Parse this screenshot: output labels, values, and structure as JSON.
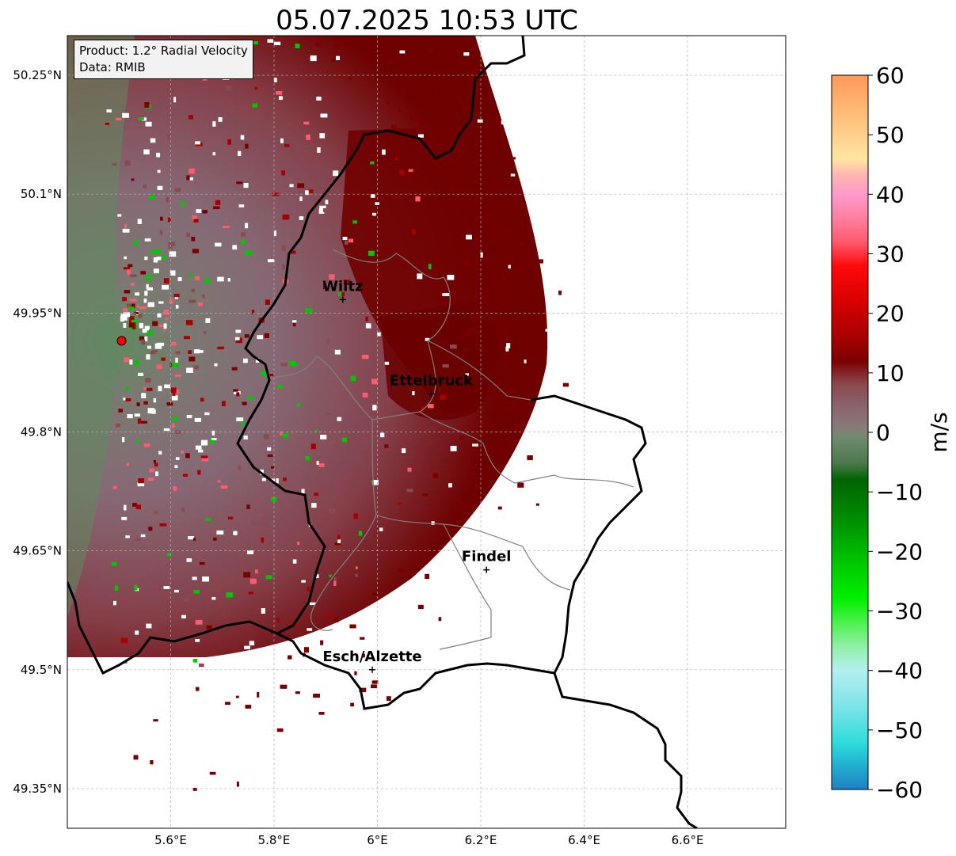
{
  "title": "05.07.2025 10:53 UTC",
  "info": {
    "product": "Product: 1.2° Radial Velocity",
    "data": "Data: RMIB"
  },
  "x_ticks": [
    {
      "value": 5.6,
      "label": "5.6°E"
    },
    {
      "value": 5.8,
      "label": "5.8°E"
    },
    {
      "value": 6.0,
      "label": "6°E"
    },
    {
      "value": 6.2,
      "label": "6.2°E"
    },
    {
      "value": 6.4,
      "label": "6.4°E"
    },
    {
      "value": 6.6,
      "label": "6.6°E"
    }
  ],
  "y_ticks": [
    {
      "value": 50.25,
      "label": "50.25°N"
    },
    {
      "value": 50.1,
      "label": "50.1°N"
    },
    {
      "value": 49.95,
      "label": "49.95°N"
    },
    {
      "value": 49.8,
      "label": "49.8°N"
    },
    {
      "value": 49.65,
      "label": "49.65°N"
    },
    {
      "value": 49.5,
      "label": "49.5°N"
    },
    {
      "value": 49.35,
      "label": "49.35°N"
    }
  ],
  "extent": {
    "lon": [
      5.4,
      6.79
    ],
    "lat": [
      49.3,
      50.3
    ]
  },
  "radar_site": {
    "lon": 5.505,
    "lat": 49.915
  },
  "cities": [
    {
      "name": "Wiltz",
      "lon": 5.933,
      "lat": 49.967
    },
    {
      "name": "Ettelbruck",
      "lon": 6.104,
      "lat": 49.848
    },
    {
      "name": "Findel",
      "lon": 6.211,
      "lat": 49.626
    },
    {
      "name": "Esch/Alzette",
      "lon": 5.99,
      "lat": 49.5
    }
  ],
  "colorbar": {
    "label": "m/s",
    "min": -60,
    "max": 60,
    "ticks": [
      60,
      50,
      40,
      30,
      20,
      10,
      0,
      -10,
      -20,
      -30,
      -40,
      -50,
      -60
    ],
    "tick_labels": [
      "60",
      "50",
      "40",
      "30",
      "20",
      "10",
      "0",
      "−10",
      "−20",
      "−30",
      "−40",
      "−50",
      "−60"
    ],
    "stops": [
      {
        "v": 60,
        "c": "#ff9955"
      },
      {
        "v": 55,
        "c": "#ffb570"
      },
      {
        "v": 50,
        "c": "#ffd08c"
      },
      {
        "v": 46,
        "c": "#ffe6a0"
      },
      {
        "v": 43,
        "c": "#ffb3b3"
      },
      {
        "v": 40,
        "c": "#ff99cc"
      },
      {
        "v": 36,
        "c": "#ff7fa0"
      },
      {
        "v": 32,
        "c": "#ff5a6e"
      },
      {
        "v": 28,
        "c": "#ff0a0a"
      },
      {
        "v": 22,
        "c": "#d80000"
      },
      {
        "v": 16,
        "c": "#a80000"
      },
      {
        "v": 12,
        "c": "#7a0000"
      },
      {
        "v": 8,
        "c": "#8a4a50"
      },
      {
        "v": 4,
        "c": "#8a6670"
      },
      {
        "v": 1,
        "c": "#8a7a78"
      },
      {
        "v": -1,
        "c": "#6e8a6e"
      },
      {
        "v": -5,
        "c": "#4e7a4e"
      },
      {
        "v": -8,
        "c": "#006400"
      },
      {
        "v": -15,
        "c": "#009000"
      },
      {
        "v": -22,
        "c": "#00c800"
      },
      {
        "v": -28,
        "c": "#00f000"
      },
      {
        "v": -32,
        "c": "#50f050"
      },
      {
        "v": -36,
        "c": "#90f0a8"
      },
      {
        "v": -40,
        "c": "#b4eef0"
      },
      {
        "v": -46,
        "c": "#7ee4e8"
      },
      {
        "v": -52,
        "c": "#30dcdc"
      },
      {
        "v": -56,
        "c": "#20b0d0"
      },
      {
        "v": -60,
        "c": "#1f7fc4"
      }
    ]
  },
  "colors": {
    "border_national": "#000000",
    "border_canton": "#808080",
    "grid": "#b0b0b0",
    "radar_dot": "#ff0000"
  }
}
